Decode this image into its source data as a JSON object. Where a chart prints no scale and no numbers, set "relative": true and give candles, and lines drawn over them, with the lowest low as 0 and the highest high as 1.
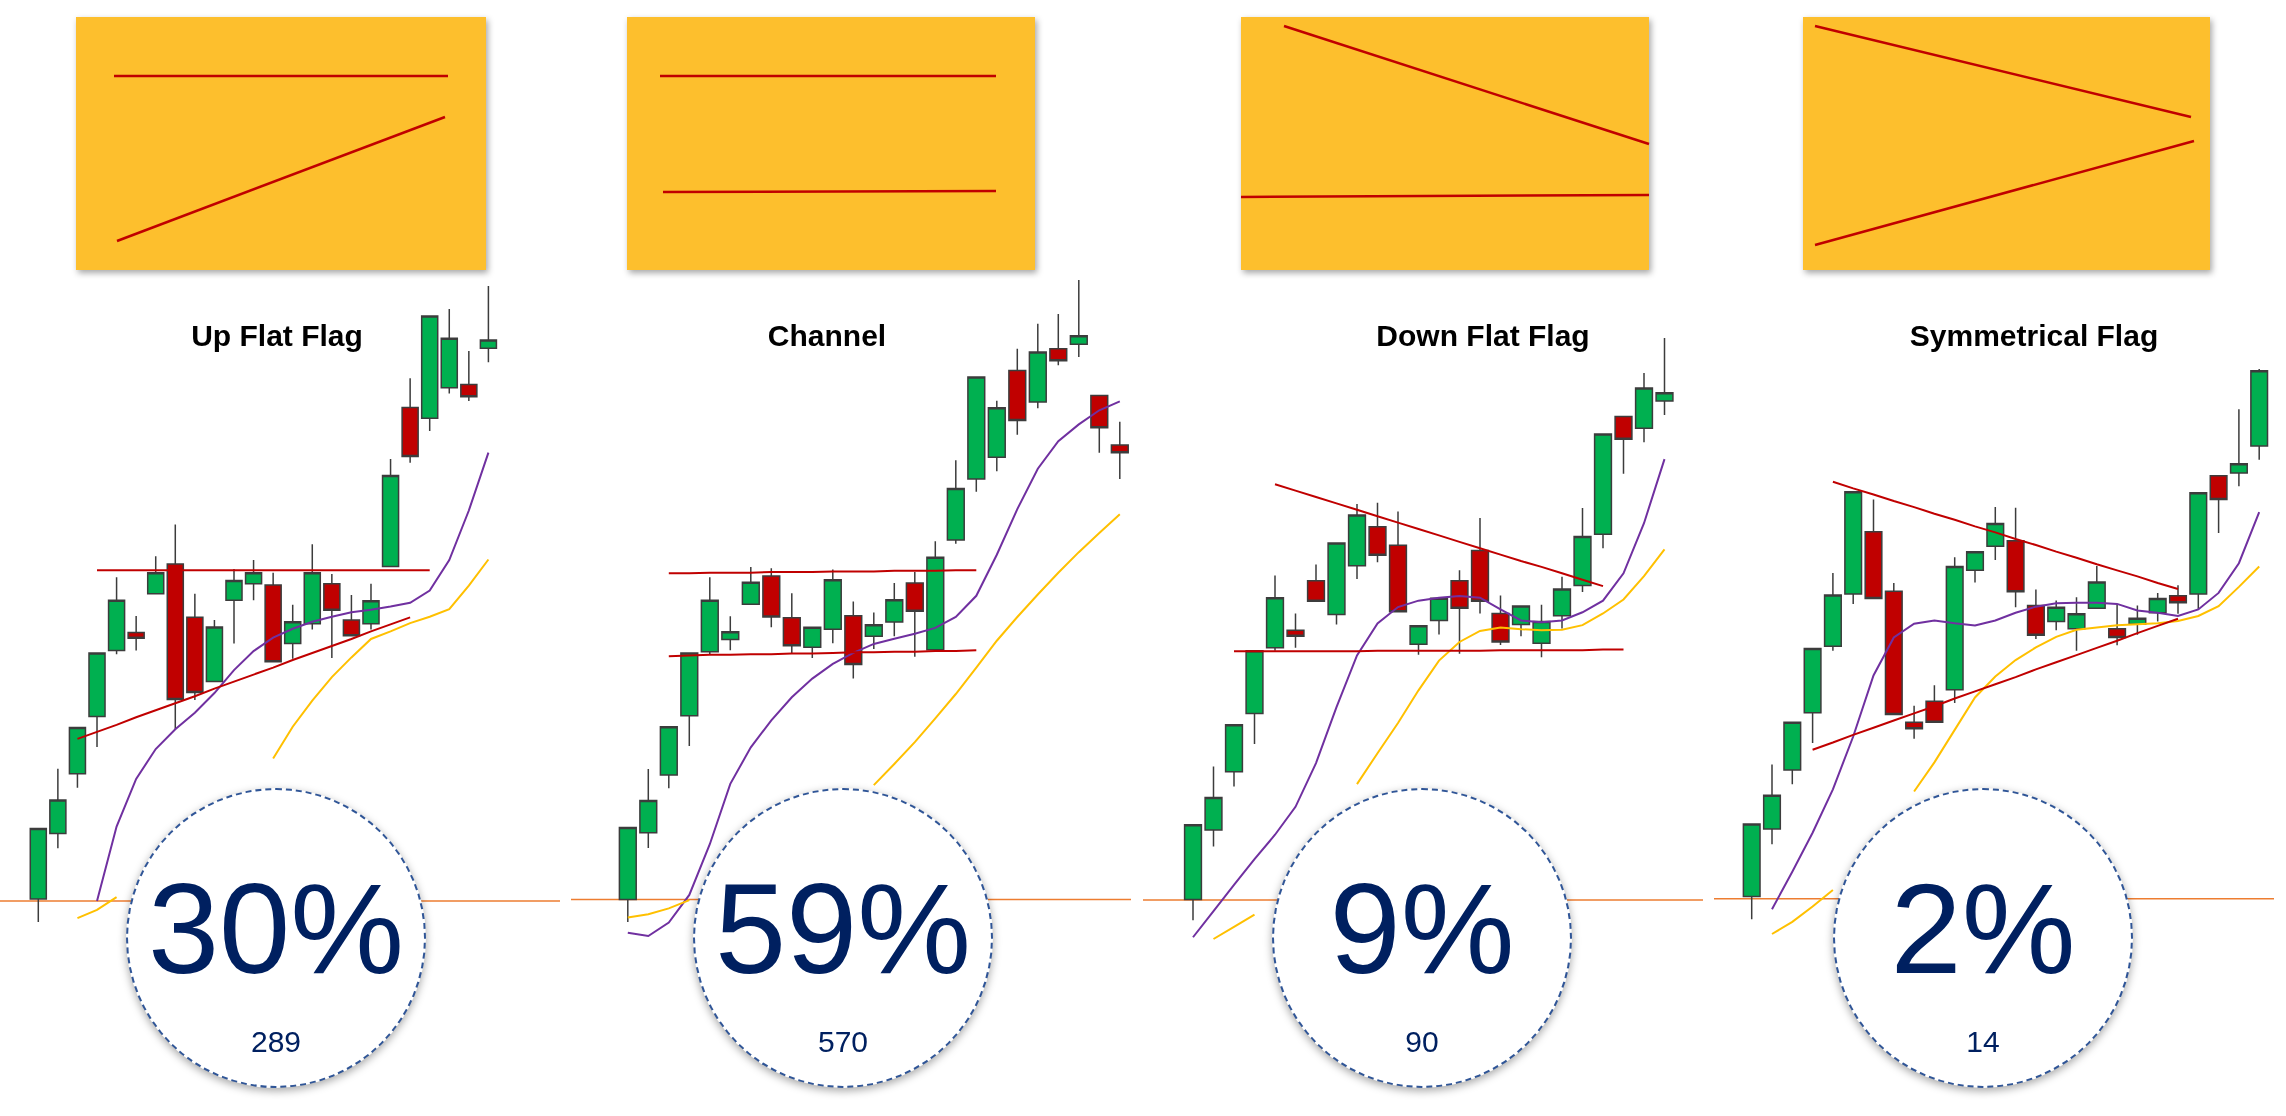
{
  "chart_data": [
    {
      "type": "candlestick",
      "title": "Up Flat Flag",
      "relative": true,
      "categories": [
        null,
        null,
        null,
        null,
        null,
        null,
        null,
        null,
        null,
        null,
        null,
        null,
        null,
        null,
        null,
        null,
        null,
        null,
        null,
        null,
        null,
        null,
        null,
        null
      ],
      "ohlc": [
        [
          0.036,
          0.147,
          0,
          0.147
        ],
        [
          0.139,
          0.241,
          0.116,
          0.192
        ],
        [
          0.233,
          0.306,
          0.211,
          0.306
        ],
        [
          0.323,
          0.423,
          0.275,
          0.423
        ],
        [
          0.427,
          0.542,
          0.421,
          0.506
        ],
        [
          0.455,
          0.481,
          0.427,
          0.446
        ],
        [
          0.516,
          0.575,
          0.516,
          0.549
        ],
        [
          0.563,
          0.625,
          0.302,
          0.35
        ],
        [
          0.479,
          0.516,
          0.349,
          0.361
        ],
        [
          0.378,
          0.475,
          0.378,
          0.464
        ],
        [
          0.506,
          0.555,
          0.438,
          0.537
        ],
        [
          0.532,
          0.569,
          0.506,
          0.549
        ],
        [
          0.53,
          0.549,
          0.409,
          0.409
        ],
        [
          0.438,
          0.499,
          0.414,
          0.472
        ],
        [
          0.469,
          0.594,
          0.46,
          0.549
        ],
        [
          0.532,
          0.547,
          0.415,
          0.49
        ],
        [
          0.475,
          0.514,
          0.45,
          0.45
        ],
        [
          0.469,
          0.532,
          0.46,
          0.505
        ],
        [
          0.559,
          0.728,
          0.559,
          0.702
        ],
        [
          0.809,
          0.855,
          0.722,
          0.732
        ],
        [
          0.792,
          0.953,
          0.772,
          0.953
        ],
        [
          0.84,
          0.964,
          0.831,
          0.918
        ],
        [
          0.845,
          0.898,
          0.819,
          0.826
        ],
        [
          0.902,
          1,
          0.88,
          0.915
        ]
      ],
      "colors": [
        "#00b050",
        "#00b050",
        "#00b050",
        "#00b050",
        "#00b050",
        "#c00000",
        "#00b050",
        "#c00000",
        "#c00000",
        "#00b050",
        "#00b050",
        "#00b050",
        "#c00000",
        "#00b050",
        "#00b050",
        "#c00000",
        "#c00000",
        "#00b050",
        "#00b050",
        "#c00000",
        "#00b050",
        "#00b050",
        "#c00000",
        "#00b050"
      ],
      "series": [
        {
          "type": "line",
          "color": "#7030a0",
          "values": [
            null,
            null,
            null,
            0.033,
            0.15,
            0.225,
            0.272,
            0.303,
            0.329,
            0.36,
            0.396,
            0.426,
            0.447,
            0.461,
            0.472,
            0.48,
            0.487,
            0.491,
            0.496,
            0.502,
            0.521,
            0.569,
            0.647,
            0.738
          ]
        },
        {
          "type": "line",
          "color": "#ffc000",
          "values": [
            null,
            null,
            0.006,
            0.019,
            0.039,
            null,
            null,
            null,
            null,
            null,
            null,
            null,
            0.257,
            0.307,
            0.348,
            0.385,
            0.416,
            0.445,
            0.457,
            0.47,
            0.48,
            0.492,
            0.529,
            0.57
          ]
        },
        {
          "type": "line",
          "color": "#c00000",
          "values": [
            null,
            null,
            null,
            0.553,
            0.553,
            0.553,
            0.553,
            0.553,
            0.553,
            0.553,
            0.553,
            0.553,
            0.553,
            0.553,
            0.553,
            0.553,
            0.553,
            0.553,
            0.553,
            0.553,
            0.553,
            null,
            null,
            null
          ]
        },
        {
          "type": "line",
          "color": "#c00000",
          "values": [
            null,
            null,
            0.288,
            0.299,
            0.31,
            0.322,
            0.333,
            0.344,
            0.355,
            0.367,
            0.378,
            0.389,
            0.4,
            0.412,
            0.423,
            0.434,
            0.445,
            0.457,
            0.468,
            0.479,
            null,
            null,
            null,
            null
          ]
        }
      ],
      "ref_lines": [
        {
          "axis": "y",
          "value": 0.033,
          "color": "#ed7d31"
        }
      ],
      "annotations": [
        "30%",
        "289"
      ]
    },
    {
      "type": "candlestick",
      "title": "Channel",
      "relative": true,
      "categories": [
        null,
        null,
        null,
        null,
        null,
        null,
        null,
        null,
        null,
        null,
        null,
        null,
        null,
        null,
        null,
        null,
        null,
        null,
        null,
        null,
        null,
        null,
        null,
        null,
        null
      ],
      "ohlc": [
        [
          0.035,
          0.147,
          0,
          0.147
        ],
        [
          0.139,
          0.238,
          0.115,
          0.189
        ],
        [
          0.229,
          0.304,
          0.208,
          0.304
        ],
        [
          0.321,
          0.419,
          0.274,
          0.419
        ],
        [
          0.421,
          0.537,
          0.416,
          0.501
        ],
        [
          0.44,
          0.476,
          0.423,
          0.452
        ],
        [
          0.495,
          0.553,
          0.495,
          0.529
        ],
        [
          0.539,
          0.551,
          0.459,
          0.475
        ],
        [
          0.474,
          0.512,
          0.419,
          0.43
        ],
        [
          0.428,
          0.459,
          0.411,
          0.459
        ],
        [
          0.456,
          0.549,
          0.434,
          0.533
        ],
        [
          0.477,
          0.499,
          0.379,
          0.401
        ],
        [
          0.445,
          0.482,
          0.425,
          0.463
        ],
        [
          0.467,
          0.528,
          0.445,
          0.502
        ],
        [
          0.528,
          0.545,
          0.413,
          0.484
        ],
        [
          0.424,
          0.593,
          0.424,
          0.568
        ],
        [
          0.595,
          0.719,
          0.589,
          0.675
        ],
        [
          0.69,
          0.849,
          0.67,
          0.849
        ],
        [
          0.724,
          0.812,
          0.702,
          0.801
        ],
        [
          0.859,
          0.893,
          0.759,
          0.781
        ],
        [
          0.81,
          0.932,
          0.8,
          0.888
        ],
        [
          0.893,
          0.947,
          0.867,
          0.874
        ],
        [
          0.9,
          1,
          0.88,
          0.913
        ],
        [
          0.82,
          0.82,
          0.731,
          0.77
        ],
        [
          0.743,
          0.779,
          0.69,
          0.731
        ]
      ],
      "colors": [
        "#00b050",
        "#00b050",
        "#00b050",
        "#00b050",
        "#00b050",
        "#00b050",
        "#00b050",
        "#c00000",
        "#c00000",
        "#00b050",
        "#00b050",
        "#c00000",
        "#00b050",
        "#00b050",
        "#c00000",
        "#00b050",
        "#00b050",
        "#00b050",
        "#00b050",
        "#c00000",
        "#00b050",
        "#c00000",
        "#00b050",
        "#c00000",
        "#c00000"
      ],
      "series": [
        {
          "type": "line",
          "color": "#7030a0",
          "values": [
            -0.017,
            -0.022,
            -0.001,
            0.042,
            0.121,
            0.215,
            0.272,
            0.314,
            0.35,
            0.379,
            0.402,
            0.419,
            0.433,
            0.441,
            0.449,
            0.458,
            0.475,
            0.508,
            0.572,
            0.643,
            0.706,
            0.749,
            0.775,
            0.797,
            0.811
          ]
        },
        {
          "type": "line",
          "color": "#ffc000",
          "values": [
            0.007,
            0.012,
            0.021,
            0.034,
            null,
            null,
            null,
            null,
            null,
            null,
            null,
            null,
            0.213,
            0.246,
            0.28,
            0.317,
            0.355,
            0.396,
            0.438,
            0.475,
            0.51,
            0.544,
            0.576,
            0.606,
            0.635
          ]
        },
        {
          "type": "line",
          "color": "#c00000",
          "values": [
            null,
            null,
            0.543,
            0.543,
            0.544,
            0.544,
            0.544,
            0.545,
            0.545,
            0.545,
            0.546,
            0.546,
            0.546,
            0.547,
            0.547,
            0.547,
            0.548,
            0.548,
            null,
            null,
            null,
            null,
            null,
            null,
            null
          ]
        },
        {
          "type": "line",
          "color": "#c00000",
          "values": [
            null,
            null,
            0.414,
            0.415,
            0.416,
            0.416,
            0.417,
            0.417,
            0.418,
            0.418,
            0.419,
            0.42,
            0.42,
            0.421,
            0.421,
            0.422,
            0.422,
            0.423,
            null,
            null,
            null,
            null,
            null,
            null,
            null
          ]
        }
      ],
      "ref_lines": [
        {
          "axis": "y",
          "value": 0.035,
          "color": "#ed7d31"
        }
      ],
      "annotations": [
        "59%",
        "570"
      ]
    },
    {
      "type": "candlestick",
      "title": "Down Flat Flag",
      "relative": true,
      "categories": [
        null,
        null,
        null,
        null,
        null,
        null,
        null,
        null,
        null,
        null,
        null,
        null,
        null,
        null,
        null,
        null,
        null,
        null,
        null,
        null,
        null,
        null,
        null,
        null
      ],
      "ohlc": [
        [
          0.036,
          0.164,
          0,
          0.164
        ],
        [
          0.155,
          0.264,
          0.127,
          0.211
        ],
        [
          0.255,
          0.336,
          0.23,
          0.336
        ],
        [
          0.355,
          0.463,
          0.303,
          0.463
        ],
        [
          0.468,
          0.592,
          0.463,
          0.554
        ],
        [
          0.498,
          0.527,
          0.468,
          0.488
        ],
        [
          0.583,
          0.611,
          0.548,
          0.548
        ],
        [
          0.525,
          0.648,
          0.508,
          0.648
        ],
        [
          0.609,
          0.715,
          0.586,
          0.696
        ],
        [
          0.676,
          0.717,
          0.615,
          0.627
        ],
        [
          0.644,
          0.702,
          0.53,
          0.53
        ],
        [
          0.474,
          0.506,
          0.456,
          0.506
        ],
        [
          0.515,
          0.553,
          0.491,
          0.553
        ],
        [
          0.583,
          0.601,
          0.458,
          0.536
        ],
        [
          0.635,
          0.691,
          0.527,
          0.548
        ],
        [
          0.527,
          0.558,
          0.473,
          0.478
        ],
        [
          0.508,
          0.54,
          0.488,
          0.54
        ],
        [
          0.476,
          0.542,
          0.452,
          0.513
        ],
        [
          0.523,
          0.59,
          0.501,
          0.569
        ],
        [
          0.575,
          0.708,
          0.564,
          0.659
        ],
        [
          0.663,
          0.835,
          0.639,
          0.835
        ],
        [
          0.865,
          0.865,
          0.767,
          0.826
        ],
        [
          0.845,
          0.94,
          0.821,
          0.914
        ],
        [
          0.892,
          1,
          0.868,
          0.906
        ]
      ],
      "colors": [
        "#00b050",
        "#00b050",
        "#00b050",
        "#00b050",
        "#00b050",
        "#c00000",
        "#c00000",
        "#00b050",
        "#00b050",
        "#c00000",
        "#c00000",
        "#00b050",
        "#00b050",
        "#c00000",
        "#c00000",
        "#c00000",
        "#00b050",
        "#00b050",
        "#00b050",
        "#00b050",
        "#00b050",
        "#c00000",
        "#00b050",
        "#00b050"
      ],
      "series": [
        {
          "type": "line",
          "color": "#7030a0",
          "values": [
            -0.029,
            0.016,
            0.061,
            0.105,
            0.147,
            0.195,
            0.27,
            0.366,
            0.455,
            0.51,
            0.538,
            0.549,
            0.554,
            0.557,
            0.554,
            0.534,
            0.515,
            0.512,
            0.515,
            0.529,
            0.549,
            0.596,
            0.682,
            0.792
          ]
        },
        {
          "type": "line",
          "color": "#ffc000",
          "values": [
            null,
            -0.032,
            -0.011,
            0.01,
            null,
            null,
            null,
            null,
            0.234,
            0.287,
            0.339,
            0.395,
            0.446,
            0.478,
            0.497,
            0.503,
            0.5,
            0.498,
            0.499,
            0.507,
            0.527,
            0.551,
            0.591,
            0.637
          ]
        },
        {
          "type": "line",
          "color": "#c00000",
          "values": [
            null,
            null,
            null,
            null,
            0.749,
            0.738,
            0.727,
            0.716,
            0.705,
            0.694,
            0.683,
            0.672,
            0.661,
            0.65,
            0.639,
            0.628,
            0.617,
            0.607,
            0.596,
            0.585,
            0.574,
            null,
            null,
            null
          ]
        },
        {
          "type": "line",
          "color": "#c00000",
          "values": [
            null,
            null,
            0.462,
            0.462,
            0.462,
            0.462,
            0.462,
            0.462,
            0.462,
            0.463,
            0.463,
            0.463,
            0.463,
            0.463,
            0.463,
            0.464,
            0.464,
            0.464,
            0.464,
            0.464,
            0.465,
            0.465,
            null,
            null
          ]
        }
      ],
      "ref_lines": [
        {
          "axis": "y",
          "value": 0.035,
          "color": "#ed7d31"
        }
      ],
      "annotations": [
        "9%",
        "90"
      ]
    },
    {
      "type": "candlestick",
      "title": "Symmetrical Flag",
      "relative": true,
      "categories": [
        null,
        null,
        null,
        null,
        null,
        null,
        null,
        null,
        null,
        null,
        null,
        null,
        null,
        null,
        null,
        null,
        null,
        null,
        null,
        null,
        null,
        null,
        null,
        null,
        null,
        null
      ],
      "ohlc": [
        [
          0.041,
          0.173,
          0,
          0.173
        ],
        [
          0.164,
          0.281,
          0.136,
          0.225
        ],
        [
          0.271,
          0.358,
          0.245,
          0.358
        ],
        [
          0.375,
          0.492,
          0.32,
          0.492
        ],
        [
          0.496,
          0.629,
          0.488,
          0.589
        ],
        [
          0.591,
          0.777,
          0.573,
          0.777
        ],
        [
          0.704,
          0.763,
          0.583,
          0.583
        ],
        [
          0.596,
          0.611,
          0.372,
          0.372
        ],
        [
          0.358,
          0.388,
          0.328,
          0.346
        ],
        [
          0.396,
          0.425,
          0.358,
          0.358
        ],
        [
          0.417,
          0.658,
          0.393,
          0.641
        ],
        [
          0.634,
          0.668,
          0.612,
          0.668
        ],
        [
          0.678,
          0.749,
          0.653,
          0.719
        ],
        [
          0.688,
          0.748,
          0.567,
          0.595
        ],
        [
          0.57,
          0.599,
          0.509,
          0.516
        ],
        [
          0.541,
          0.579,
          0.525,
          0.567
        ],
        [
          0.528,
          0.585,
          0.488,
          0.555
        ],
        [
          0.565,
          0.642,
          0.565,
          0.613
        ],
        [
          0.528,
          0.573,
          0.498,
          0.512
        ],
        [
          0.536,
          0.57,
          0.517,
          0.547
        ],
        [
          0.557,
          0.593,
          0.541,
          0.583
        ],
        [
          0.588,
          0.607,
          0.555,
          0.575
        ],
        [
          0.591,
          0.775,
          0.563,
          0.775
        ],
        [
          0.806,
          0.806,
          0.702,
          0.763
        ],
        [
          0.811,
          0.927,
          0.787,
          0.828
        ],
        [
          0.86,
          1,
          0.835,
          0.997
        ]
      ],
      "colors": [
        "#00b050",
        "#00b050",
        "#00b050",
        "#00b050",
        "#00b050",
        "#00b050",
        "#c00000",
        "#c00000",
        "#c00000",
        "#c00000",
        "#00b050",
        "#00b050",
        "#00b050",
        "#c00000",
        "#c00000",
        "#00b050",
        "#00b050",
        "#00b050",
        "#c00000",
        "#00b050",
        "#00b050",
        "#c00000",
        "#00b050",
        "#c00000",
        "#00b050",
        "#00b050"
      ],
      "series": [
        {
          "type": "line",
          "color": "#7030a0",
          "values": [
            null,
            0.018,
            0.086,
            0.157,
            0.236,
            0.332,
            0.443,
            0.512,
            0.537,
            0.543,
            0.538,
            0.534,
            0.543,
            0.557,
            0.568,
            0.574,
            0.575,
            0.575,
            0.573,
            0.561,
            0.557,
            0.551,
            0.563,
            0.593,
            0.647,
            0.74
          ]
        },
        {
          "type": "line",
          "color": "#ffc000",
          "values": [
            null,
            -0.027,
            -0.005,
            0.023,
            0.053,
            null,
            null,
            null,
            0.232,
            0.285,
            0.344,
            0.403,
            0.441,
            0.471,
            0.494,
            0.513,
            0.526,
            0.53,
            0.534,
            0.536,
            0.538,
            0.542,
            0.551,
            0.569,
            0.604,
            0.641
          ]
        },
        {
          "type": "line",
          "color": "#c00000",
          "values": [
            null,
            null,
            null,
            null,
            0.795,
            0.783,
            0.772,
            0.76,
            0.749,
            0.737,
            0.726,
            0.714,
            0.703,
            0.691,
            0.68,
            0.668,
            0.657,
            0.645,
            0.634,
            0.623,
            0.611,
            0.6,
            null,
            null,
            null,
            null
          ]
        },
        {
          "type": "line",
          "color": "#c00000",
          "values": [
            null,
            null,
            null,
            0.308,
            0.321,
            0.335,
            0.348,
            0.361,
            0.374,
            0.387,
            0.401,
            0.414,
            0.427,
            0.44,
            0.454,
            0.467,
            0.48,
            0.493,
            0.506,
            0.52,
            0.533,
            0.546,
            null,
            null,
            null,
            null
          ]
        }
      ],
      "ref_lines": [
        {
          "axis": "y",
          "value": 0.037,
          "color": "#ed7d31"
        }
      ],
      "annotations": [
        "2%",
        "14"
      ]
    }
  ]
}
